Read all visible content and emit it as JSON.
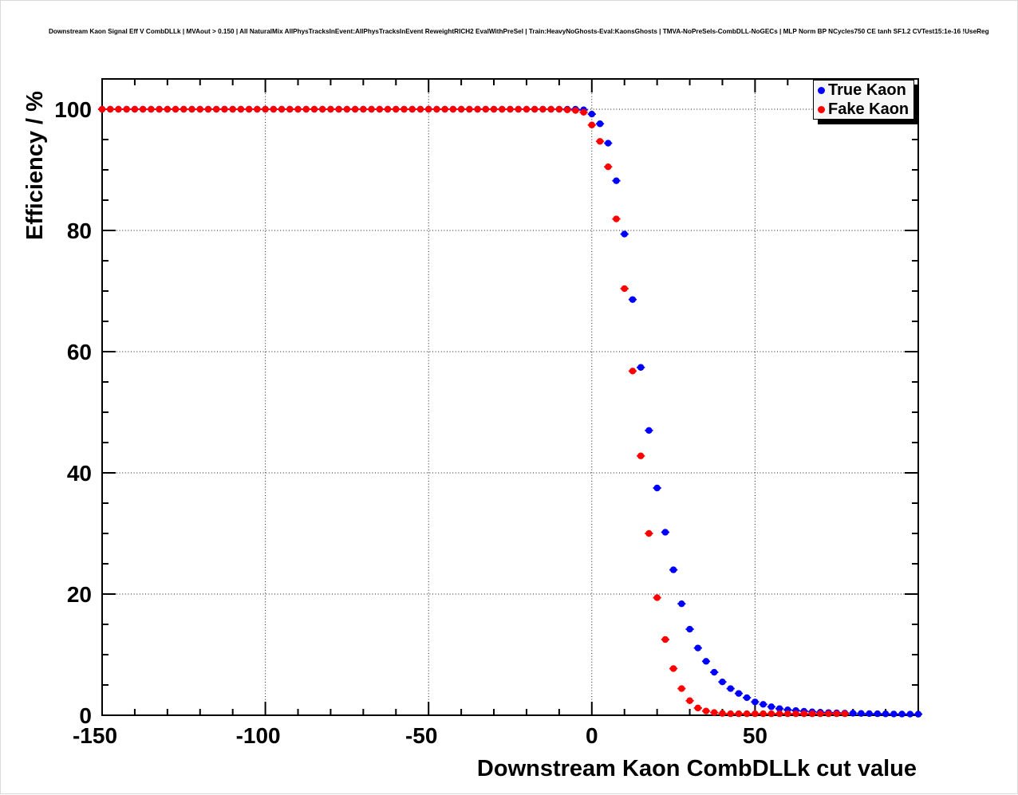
{
  "header": {
    "title": "Downstream Kaon Signal Eff V CombDLLk | MVAout > 0.150 | All NaturalMix AllPhysTracksInEvent:AllPhysTracksInEvent ReweightRICH2 EvalWithPreSel | Train:HeavyNoGhosts-Eval:KaonsGhosts | TMVA-NoPreSels-CombDLL-NoGECs | MLP Norm BP NCycles750 CE tanh SF1.2 CVTest15:1e-16 !UseReg"
  },
  "chart_data": {
    "type": "scatter",
    "title": "Downstream Kaon Signal Eff V CombDLLk | MVAout > 0.150 | All NaturalMix AllPhysTracksInEvent:AllPhysTracksInEvent ReweightRICH2 EvalWithPreSel | Train:HeavyNoGhosts-Eval:KaonsGhosts | TMVA-NoPreSels-CombDLL-NoGECs | MLP Norm BP NCycles750 CE tanh SF1.2 CVTest15:1e-16 !UseReg",
    "xlabel": "Downstream Kaon CombDLLk cut value",
    "ylabel": "Efficiency / %",
    "xlim": [
      -150,
      100
    ],
    "ylim": [
      0,
      105
    ],
    "x_ticks": {
      "major_values": [
        -150,
        -100,
        -50,
        0,
        50,
        100
      ],
      "labels": [
        "-150",
        "-100",
        "-50",
        "0",
        "50",
        ""
      ],
      "minor_step": 10
    },
    "y_ticks": {
      "major_values": [
        0,
        20,
        40,
        60,
        80,
        100
      ],
      "labels": [
        "0",
        "20",
        "40",
        "60",
        "80",
        "100"
      ],
      "minor_step": 5
    },
    "grid": {
      "style": "dotted",
      "on_major": true
    },
    "frame_color": "#000000",
    "legend": {
      "position": "top-right",
      "entries": [
        {
          "label": "True Kaon",
          "color": "#0000ff"
        },
        {
          "label": "Fake Kaon",
          "color": "#ff0000"
        }
      ]
    },
    "series": [
      {
        "name": "True Kaon",
        "color": "#0000ff",
        "marker": "filled-circle",
        "x_error_halfwidth": 1.25,
        "points": [
          [
            -150,
            100
          ],
          [
            -147.5,
            100
          ],
          [
            -145,
            100
          ],
          [
            -142.5,
            100
          ],
          [
            -140,
            100
          ],
          [
            -137.5,
            100
          ],
          [
            -135,
            100
          ],
          [
            -132.5,
            100
          ],
          [
            -130,
            100
          ],
          [
            -127.5,
            100
          ],
          [
            -125,
            100
          ],
          [
            -122.5,
            100
          ],
          [
            -120,
            100
          ],
          [
            -117.5,
            100
          ],
          [
            -115,
            100
          ],
          [
            -112.5,
            100
          ],
          [
            -110,
            100
          ],
          [
            -107.5,
            100
          ],
          [
            -105,
            100
          ],
          [
            -102.5,
            100
          ],
          [
            -100,
            100
          ],
          [
            -97.5,
            100
          ],
          [
            -95,
            100
          ],
          [
            -92.5,
            100
          ],
          [
            -90,
            100
          ],
          [
            -87.5,
            100
          ],
          [
            -85,
            100
          ],
          [
            -82.5,
            100
          ],
          [
            -80,
            100
          ],
          [
            -77.5,
            100
          ],
          [
            -75,
            100
          ],
          [
            -72.5,
            100
          ],
          [
            -70,
            100
          ],
          [
            -67.5,
            100
          ],
          [
            -65,
            100
          ],
          [
            -62.5,
            100
          ],
          [
            -60,
            100
          ],
          [
            -57.5,
            100
          ],
          [
            -55,
            100
          ],
          [
            -52.5,
            100
          ],
          [
            -50,
            100
          ],
          [
            -47.5,
            100
          ],
          [
            -45,
            100
          ],
          [
            -42.5,
            100
          ],
          [
            -40,
            100
          ],
          [
            -37.5,
            100
          ],
          [
            -35,
            100
          ],
          [
            -32.5,
            100
          ],
          [
            -30,
            100
          ],
          [
            -27.5,
            100
          ],
          [
            -25,
            100
          ],
          [
            -22.5,
            100
          ],
          [
            -20,
            100
          ],
          [
            -17.5,
            100
          ],
          [
            -15,
            100
          ],
          [
            -12.5,
            100
          ],
          [
            -10,
            100
          ],
          [
            -7.5,
            100
          ],
          [
            -5,
            100
          ],
          [
            -2.5,
            99.9
          ],
          [
            0,
            99.2
          ],
          [
            2.5,
            97.6
          ],
          [
            5,
            94.4
          ],
          [
            7.5,
            88.2
          ],
          [
            10,
            79.4
          ],
          [
            12.5,
            68.6
          ],
          [
            15,
            57.4
          ],
          [
            17.5,
            47
          ],
          [
            20,
            37.5
          ],
          [
            22.5,
            30.2
          ],
          [
            25,
            24
          ],
          [
            27.5,
            18.4
          ],
          [
            30,
            14.2
          ],
          [
            32.5,
            11.1
          ],
          [
            35,
            8.9
          ],
          [
            37.5,
            7.1
          ],
          [
            40,
            5.5
          ],
          [
            42.5,
            4.4
          ],
          [
            45,
            3.6
          ],
          [
            47.5,
            2.9
          ],
          [
            50,
            2.2
          ],
          [
            52.5,
            1.8
          ],
          [
            55,
            1.4
          ],
          [
            57.5,
            1.1
          ],
          [
            60,
            0.9
          ],
          [
            62.5,
            0.78
          ],
          [
            65,
            0.66
          ],
          [
            67.5,
            0.57
          ],
          [
            70,
            0.5
          ],
          [
            72.5,
            0.44
          ],
          [
            75,
            0.4
          ],
          [
            77.5,
            0.36
          ],
          [
            80,
            0.33
          ],
          [
            82.5,
            0.3
          ],
          [
            85,
            0.27
          ],
          [
            87.5,
            0.25
          ],
          [
            90,
            0.23
          ],
          [
            92.5,
            0.21
          ],
          [
            95,
            0.2
          ],
          [
            97.5,
            0.19
          ],
          [
            100,
            0.18
          ]
        ]
      },
      {
        "name": "Fake Kaon",
        "color": "#ff0000",
        "marker": "filled-circle",
        "x_error_halfwidth": 1.25,
        "points": [
          [
            -150,
            100
          ],
          [
            -147.5,
            100
          ],
          [
            -145,
            100
          ],
          [
            -142.5,
            100
          ],
          [
            -140,
            100
          ],
          [
            -137.5,
            100
          ],
          [
            -135,
            100
          ],
          [
            -132.5,
            100
          ],
          [
            -130,
            100
          ],
          [
            -127.5,
            100
          ],
          [
            -125,
            100
          ],
          [
            -122.5,
            100
          ],
          [
            -120,
            100
          ],
          [
            -117.5,
            100
          ],
          [
            -115,
            100
          ],
          [
            -112.5,
            100
          ],
          [
            -110,
            100
          ],
          [
            -107.5,
            100
          ],
          [
            -105,
            100
          ],
          [
            -102.5,
            100
          ],
          [
            -100,
            100
          ],
          [
            -97.5,
            100
          ],
          [
            -95,
            100
          ],
          [
            -92.5,
            100
          ],
          [
            -90,
            100
          ],
          [
            -87.5,
            100
          ],
          [
            -85,
            100
          ],
          [
            -82.5,
            100
          ],
          [
            -80,
            100
          ],
          [
            -77.5,
            100
          ],
          [
            -75,
            100
          ],
          [
            -72.5,
            100
          ],
          [
            -70,
            100
          ],
          [
            -67.5,
            100
          ],
          [
            -65,
            100
          ],
          [
            -62.5,
            100
          ],
          [
            -60,
            100
          ],
          [
            -57.5,
            100
          ],
          [
            -55,
            100
          ],
          [
            -52.5,
            100
          ],
          [
            -50,
            100
          ],
          [
            -47.5,
            100
          ],
          [
            -45,
            100
          ],
          [
            -42.5,
            100
          ],
          [
            -40,
            100
          ],
          [
            -37.5,
            100
          ],
          [
            -35,
            100
          ],
          [
            -32.5,
            100
          ],
          [
            -30,
            100
          ],
          [
            -27.5,
            100
          ],
          [
            -25,
            100
          ],
          [
            -22.5,
            100
          ],
          [
            -20,
            100
          ],
          [
            -17.5,
            100
          ],
          [
            -15,
            100
          ],
          [
            -12.5,
            100
          ],
          [
            -10,
            100
          ],
          [
            -7.5,
            99.9
          ],
          [
            -5,
            99.8
          ],
          [
            -2.5,
            99.5
          ],
          [
            0,
            97.4
          ],
          [
            2.5,
            94.7
          ],
          [
            5,
            90.5
          ],
          [
            7.5,
            81.9
          ],
          [
            10,
            70.4
          ],
          [
            12.5,
            56.8
          ],
          [
            15,
            42.8
          ],
          [
            17.5,
            30
          ],
          [
            20,
            19.4
          ],
          [
            22.5,
            12.5
          ],
          [
            25,
            7.7
          ],
          [
            27.5,
            4.4
          ],
          [
            30,
            2.4
          ],
          [
            32.5,
            1.2
          ],
          [
            35,
            0.7
          ],
          [
            37.5,
            0.45
          ],
          [
            40,
            0.3
          ],
          [
            42.5,
            0.25
          ],
          [
            45,
            0.25
          ],
          [
            47.5,
            0.25
          ],
          [
            50,
            0.25
          ],
          [
            52.5,
            0.25
          ],
          [
            55,
            0.25
          ],
          [
            57.5,
            0.25
          ],
          [
            60,
            0.25
          ],
          [
            62.5,
            0.25
          ],
          [
            65,
            0.25
          ],
          [
            67.5,
            0.25
          ],
          [
            70,
            0.25
          ],
          [
            72.5,
            0.25
          ],
          [
            75,
            0.25
          ],
          [
            77.5,
            0.25
          ]
        ]
      }
    ]
  }
}
